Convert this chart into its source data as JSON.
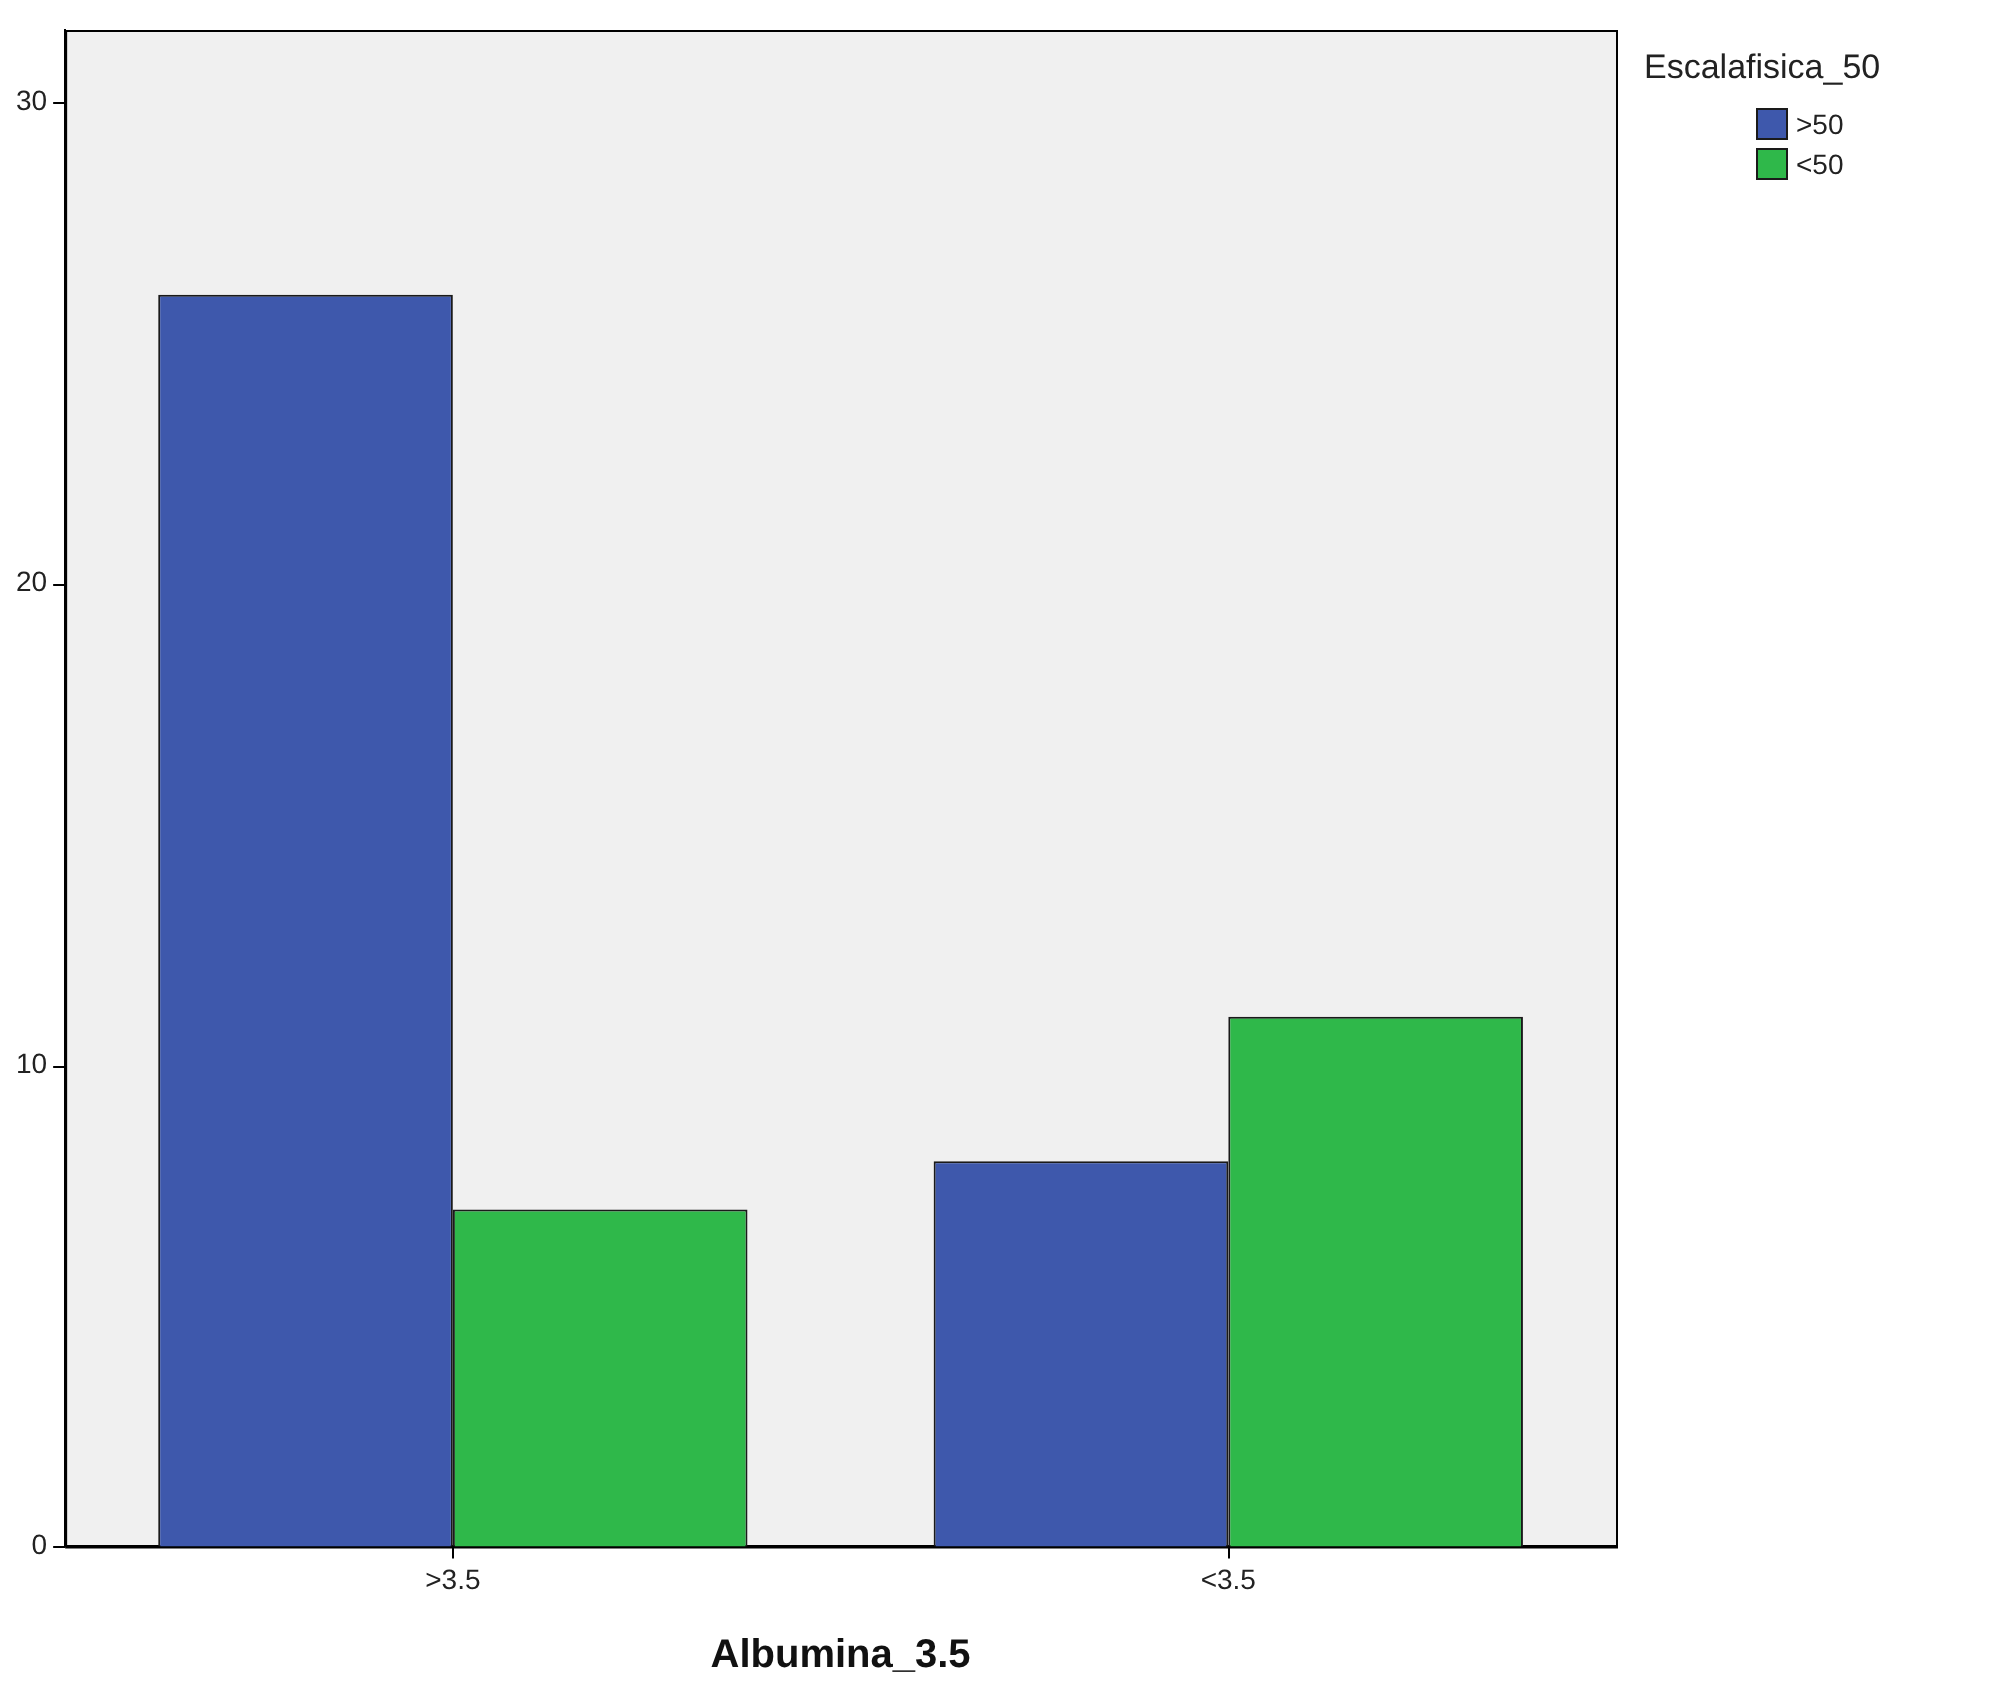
{
  "chart_data": {
    "type": "bar",
    "xlabel": "Albumina_3.5",
    "legend_title": "Escalafisica_50",
    "legend": "top right",
    "grid": false,
    "categories": [
      ">3.5",
      "<3.5"
    ],
    "series": [
      {
        "name": ">50",
        "color": "#3e58ac",
        "values": [
          26,
          8
        ]
      },
      {
        "name": "<50",
        "color": "#2fb84a",
        "values": [
          7,
          11
        ]
      }
    ],
    "ylim": [
      0,
      31.5
    ],
    "yticks": [
      0,
      10,
      20,
      30
    ]
  }
}
